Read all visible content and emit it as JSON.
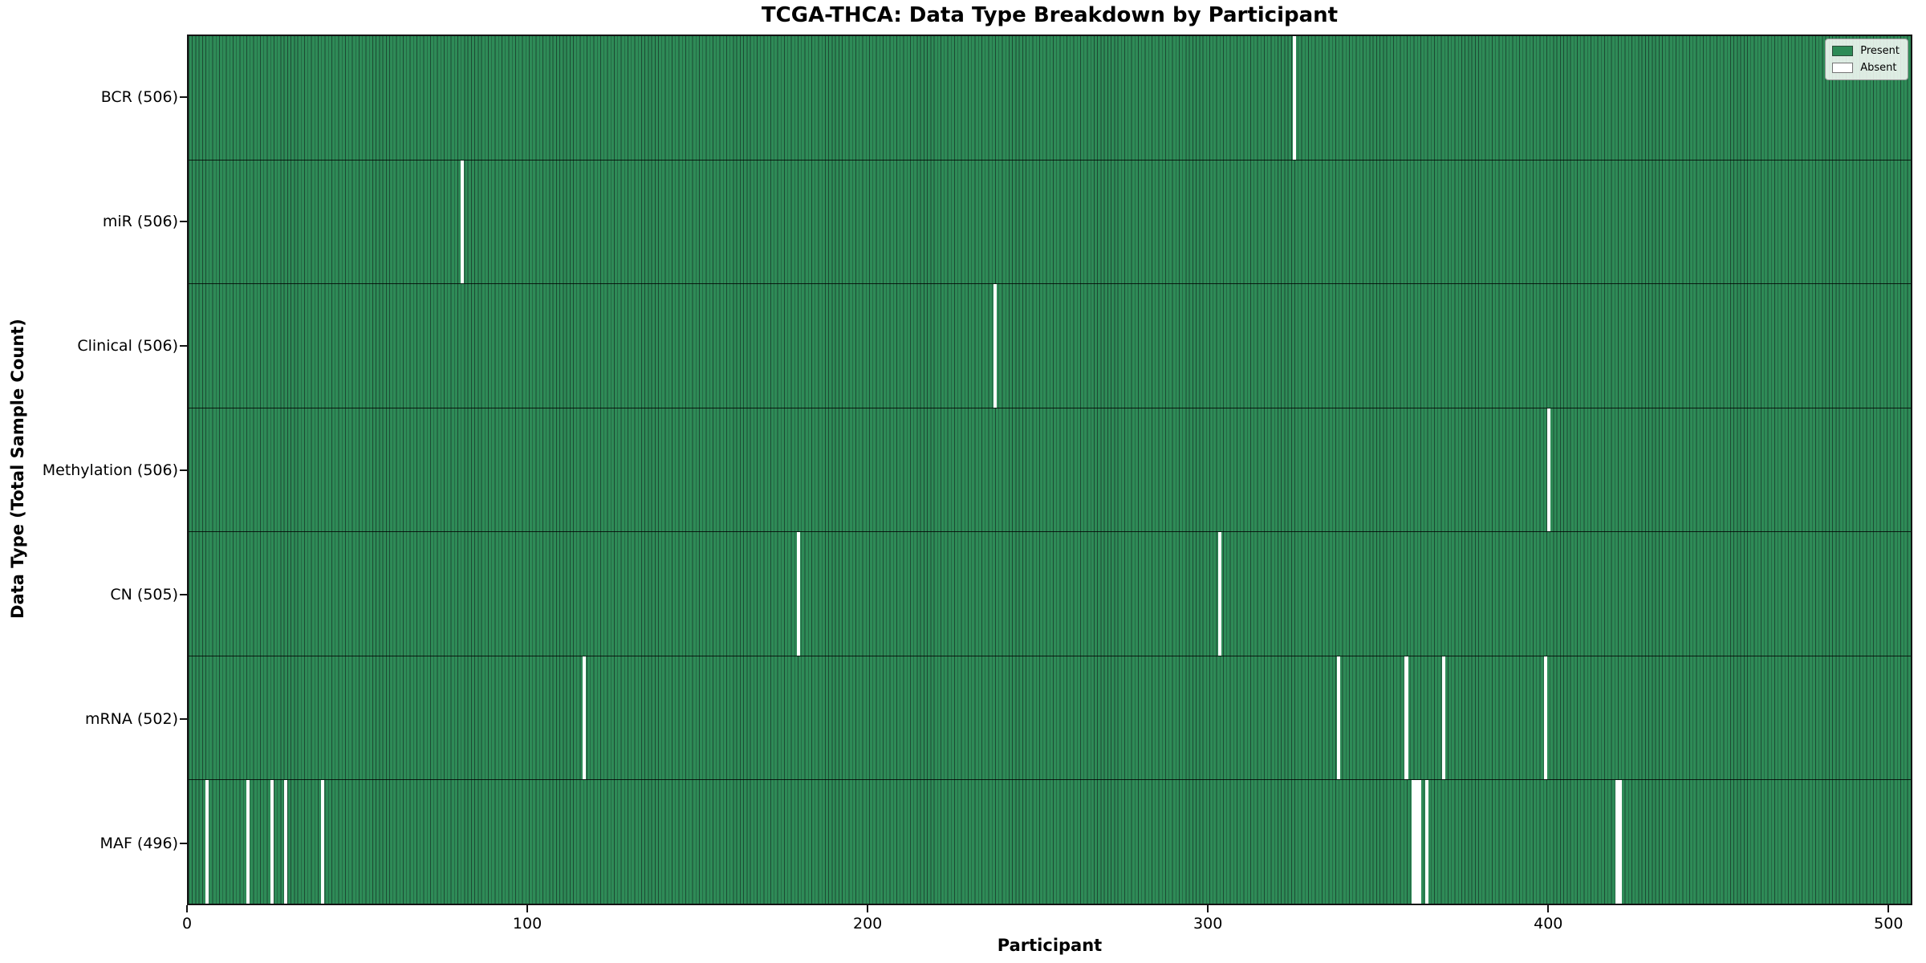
{
  "chart_data": {
    "type": "heatmap",
    "title": "TCGA-THCA: Data Type Breakdown by Participant",
    "xlabel": "Participant",
    "ylabel": "Data Type (Total Sample Count)",
    "x_ticks": [
      0,
      100,
      200,
      300,
      400,
      500
    ],
    "xlim": [
      0,
      507
    ],
    "n_participants": 507,
    "present_color": "#2e8b57",
    "absent_color": "#ffffff",
    "bar_edge_color": "#1c4a33",
    "grid": false,
    "legend_position": "upper right",
    "legend": [
      {
        "label": "Present",
        "color": "#2e8b57"
      },
      {
        "label": "Absent",
        "color": "#ffffff"
      }
    ],
    "rows": [
      {
        "label": "BCR (506)",
        "data_type": "BCR",
        "present_count": 506,
        "absent_participants": [
          325
        ]
      },
      {
        "label": "miR (506)",
        "data_type": "miR",
        "present_count": 506,
        "absent_participants": [
          80
        ]
      },
      {
        "label": "Clinical (506)",
        "data_type": "Clinical",
        "present_count": 506,
        "absent_participants": [
          237
        ]
      },
      {
        "label": "Methylation (506)",
        "data_type": "Methylation",
        "present_count": 506,
        "absent_participants": [
          400
        ]
      },
      {
        "label": "CN (505)",
        "data_type": "CN",
        "present_count": 505,
        "absent_participants": [
          179,
          303
        ]
      },
      {
        "label": "mRNA (502)",
        "data_type": "mRNA",
        "present_count": 502,
        "absent_participants": [
          116,
          338,
          358,
          369,
          399
        ]
      },
      {
        "label": "MAF (496)",
        "data_type": "MAF",
        "present_count": 496,
        "absent_participants": [
          5,
          17,
          24,
          28,
          39,
          360,
          361,
          362,
          364,
          420,
          421
        ]
      }
    ]
  }
}
